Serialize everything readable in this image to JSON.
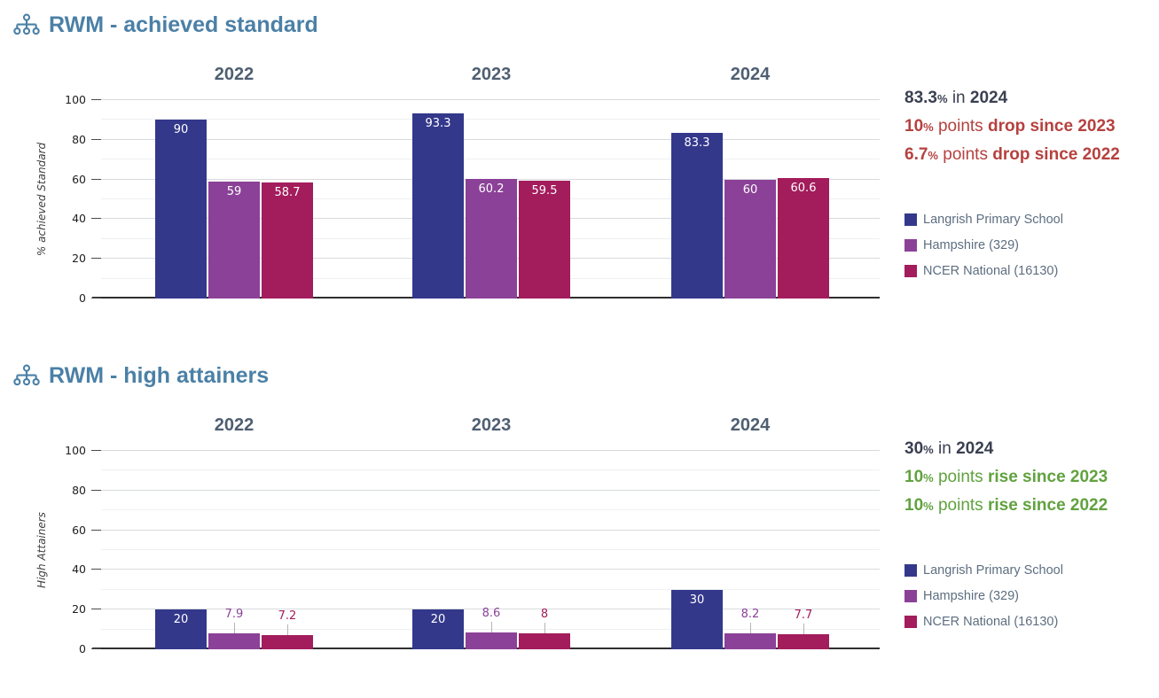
{
  "accent_colors": {
    "title_blue": "#4b80a6",
    "year_label": "#4f5f71",
    "summary_dark": "#3a4051",
    "summary_red": "#b5413f",
    "summary_green": "#61a23f",
    "legend_text": "#5d6e80"
  },
  "chart_data": [
    {
      "type": "bar",
      "title": "RWM - achieved standard",
      "ylabel": "% achieved Standard",
      "xlabel": "",
      "categories": [
        "2022",
        "2023",
        "2024"
      ],
      "series": [
        {
          "name": "Langrish Primary School",
          "color": "#34388b",
          "values": [
            90,
            93.3,
            83.3
          ]
        },
        {
          "name": "Hampshire (329)",
          "color": "#8b4197",
          "values": [
            59,
            60.2,
            60
          ]
        },
        {
          "name": "NCER National (16130)",
          "color": "#a31c5c",
          "values": [
            58.7,
            59.5,
            60.6
          ]
        }
      ],
      "ylim": [
        0,
        100
      ],
      "yticks": [
        0,
        20,
        40,
        60,
        80,
        100
      ],
      "grid": "horizontal every 10, darker every 20",
      "legend_position": "right",
      "summary": [
        {
          "value": "83.3",
          "unit": "%",
          "mid": " in ",
          "tail": "2024",
          "color": "#3a4051"
        },
        {
          "value": "10",
          "unit": "%",
          "mid": " points ",
          "tail": "drop since 2023",
          "color": "#b5413f"
        },
        {
          "value": "6.7",
          "unit": "%",
          "mid": " points ",
          "tail": "drop since 2022",
          "color": "#b5413f"
        }
      ]
    },
    {
      "type": "bar",
      "title": "RWM - high attainers",
      "ylabel": "High Attainers",
      "xlabel": "",
      "categories": [
        "2022",
        "2023",
        "2024"
      ],
      "series": [
        {
          "name": "Langrish Primary School",
          "color": "#34388b",
          "values": [
            20,
            20,
            30
          ]
        },
        {
          "name": "Hampshire (329)",
          "color": "#8b4197",
          "values": [
            7.9,
            8.6,
            8.2
          ]
        },
        {
          "name": "NCER National (16130)",
          "color": "#a31c5c",
          "values": [
            7.2,
            8,
            7.7
          ]
        }
      ],
      "ylim": [
        0,
        100
      ],
      "yticks": [
        0,
        20,
        40,
        60,
        80,
        100
      ],
      "grid": "horizontal every 10, darker every 20",
      "legend_position": "right",
      "summary": [
        {
          "value": "30",
          "unit": "%",
          "mid": " in ",
          "tail": "2024",
          "color": "#3a4051"
        },
        {
          "value": "10",
          "unit": "%",
          "mid": " points ",
          "tail": "rise since 2023",
          "color": "#61a23f"
        },
        {
          "value": "10",
          "unit": "%",
          "mid": " points ",
          "tail": "rise since 2022",
          "color": "#61a23f"
        }
      ]
    }
  ]
}
